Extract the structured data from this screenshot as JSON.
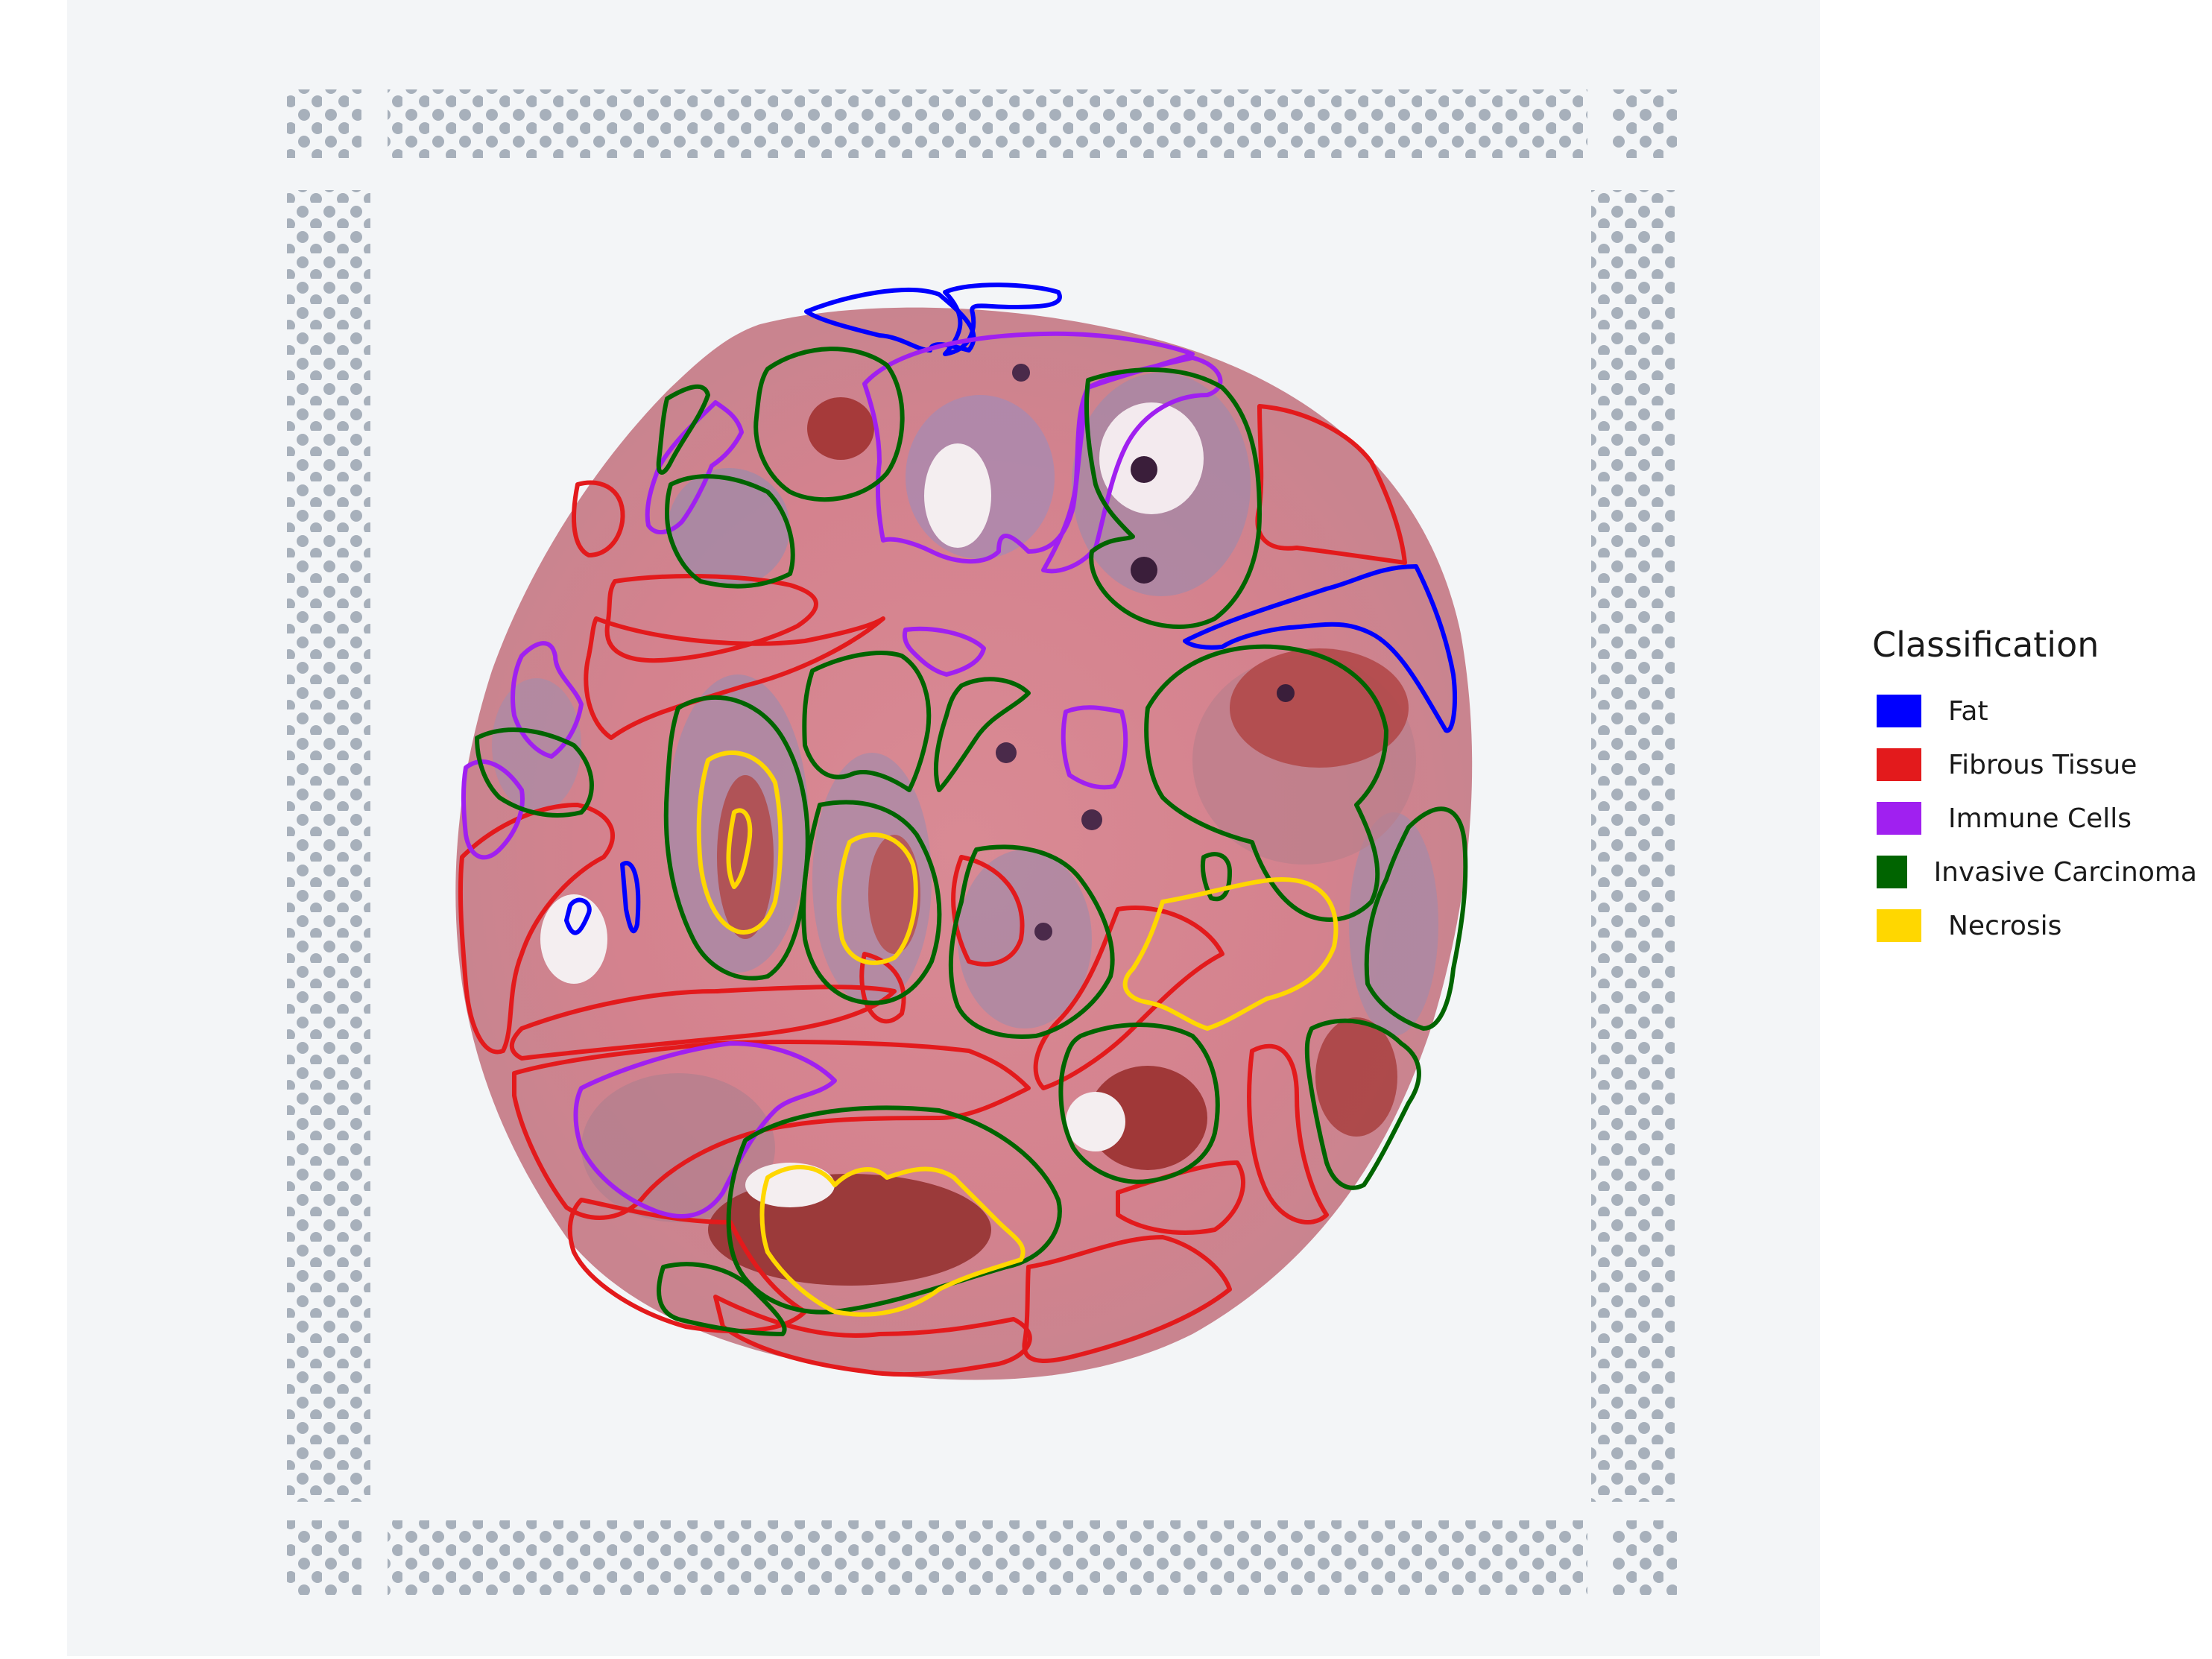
{
  "legend": {
    "title": "Classification",
    "items": [
      {
        "label": "Fat",
        "color": "#0000ff"
      },
      {
        "label": "Fibrous Tissue",
        "color": "#e31a1c"
      },
      {
        "label": "Immune Cells",
        "color": "#a020f0"
      },
      {
        "label": "Invasive Carcinoma",
        "color": "#006400"
      },
      {
        "label": "Necrosis",
        "color": "#ffd700"
      }
    ]
  },
  "colors": {
    "tissue": "#d9848f",
    "tumor": "#a48aa8",
    "blood": "#a03a3a",
    "background": "#f4f6f8",
    "fiducial": "#9aa4b0"
  }
}
